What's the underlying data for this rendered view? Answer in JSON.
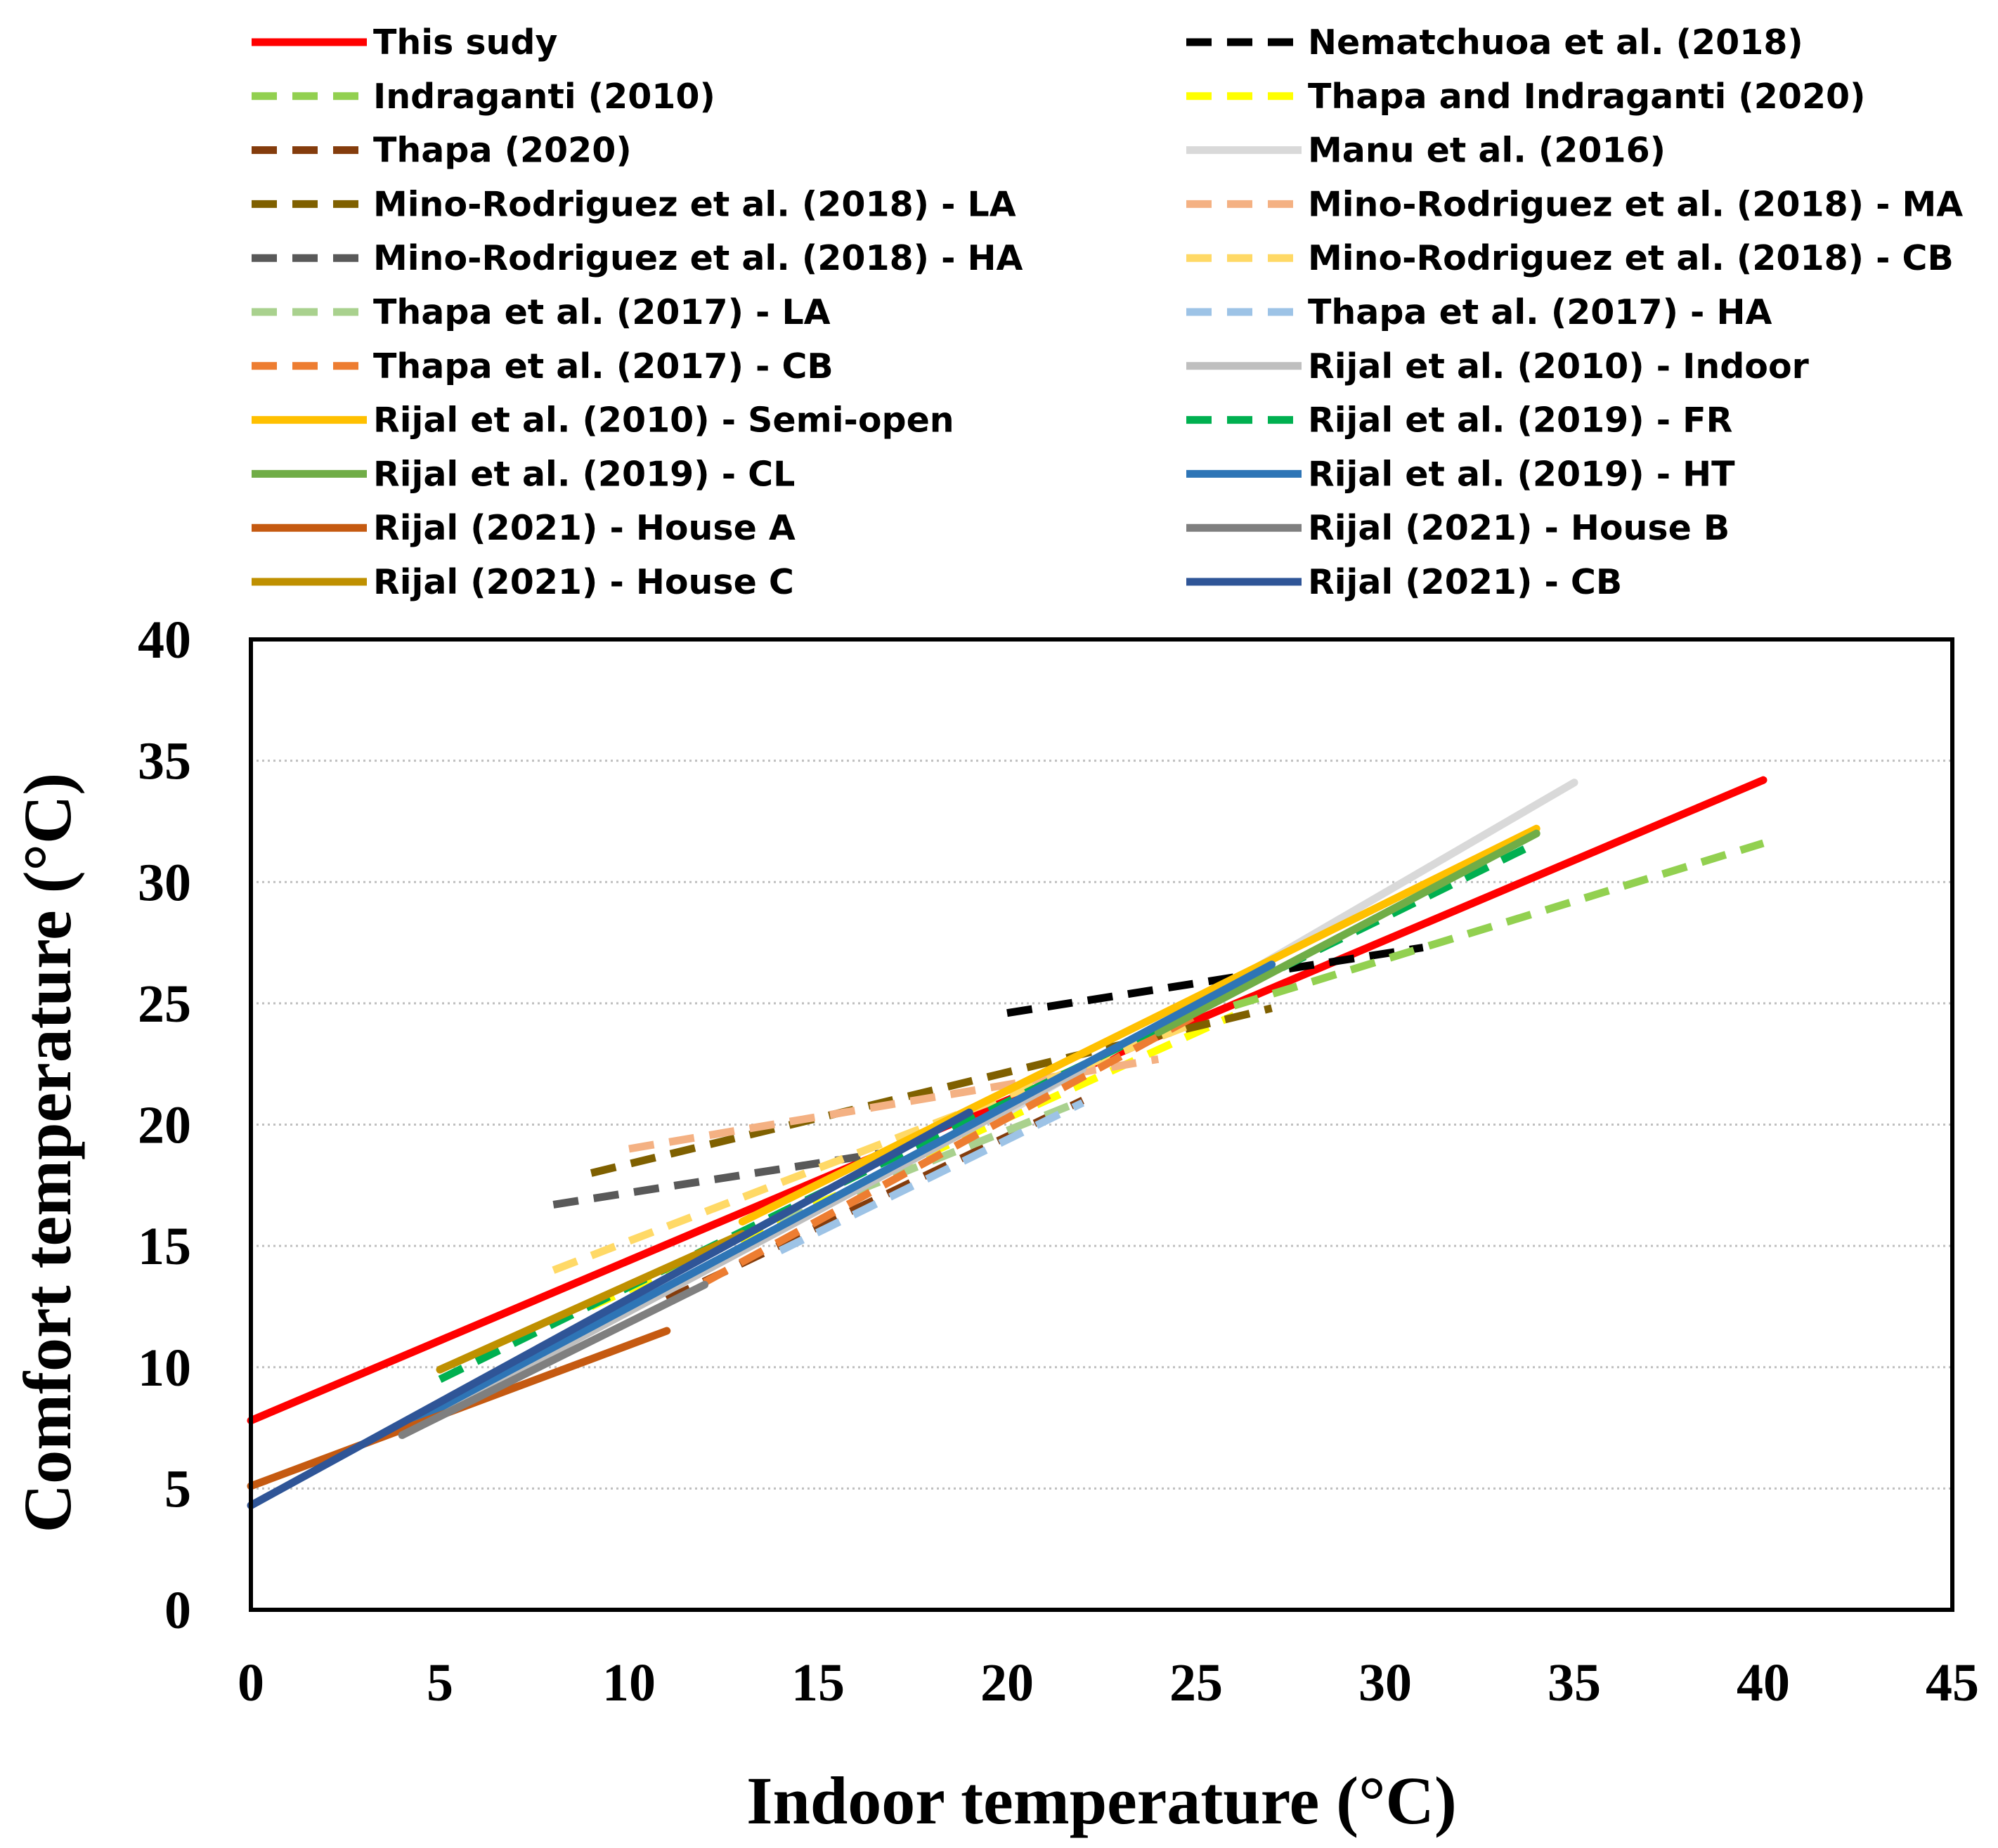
{
  "chart_data": {
    "type": "line",
    "title": "",
    "xlabel": "Indoor temperature (°C)",
    "ylabel": "Comfort temperature (°C)",
    "xlim": [
      0,
      45
    ],
    "ylim": [
      0,
      40
    ],
    "xticks": [
      "0",
      "5",
      "10",
      "15",
      "20",
      "25",
      "30",
      "35",
      "40",
      "45"
    ],
    "yticks": [
      "0",
      "5",
      "10",
      "15",
      "20",
      "25",
      "30",
      "35",
      "40"
    ],
    "grid": "horizontal dotted",
    "legend_position": "top",
    "series": [
      {
        "name": "This sudy",
        "color": "#ff0000",
        "style": "solid",
        "x": [
          0,
          40
        ],
        "y": [
          7.8,
          34.2
        ]
      },
      {
        "name": "Nematchuoa et al. (2018)",
        "color": "#000000",
        "style": "dashed",
        "x": [
          20,
          31
        ],
        "y": [
          24.6,
          27.3
        ]
      },
      {
        "name": "Indraganti (2010)",
        "color": "#92d050",
        "style": "dashed",
        "x": [
          26,
          40
        ],
        "y": [
          24.9,
          31.6
        ]
      },
      {
        "name": "Thapa and Indraganti (2020)",
        "color": "#ffff00",
        "style": "dashed",
        "x": [
          9,
          26
        ],
        "y": [
          12.5,
          24.5
        ]
      },
      {
        "name": "Thapa (2020)",
        "color": "#843c0c",
        "style": "dashed",
        "x": [
          11,
          22
        ],
        "y": [
          12.8,
          21
        ]
      },
      {
        "name": "Manu et al. (2016)",
        "color": "#d9d9d9",
        "style": "solid",
        "x": [
          20,
          35
        ],
        "y": [
          20.5,
          34.1
        ]
      },
      {
        "name": "Mino-Rodriguez et al. (2018) - LA",
        "color": "#7f6000",
        "style": "dashed",
        "x": [
          9,
          27
        ],
        "y": [
          18,
          24.8
        ]
      },
      {
        "name": "Mino-Rodriguez et al. (2018) - MA",
        "color": "#f4b183",
        "style": "dashed",
        "x": [
          10,
          24
        ],
        "y": [
          19,
          22.7
        ]
      },
      {
        "name": "Mino-Rodriguez et al. (2018) - HA",
        "color": "#595959",
        "style": "dashed",
        "x": [
          8,
          17
        ],
        "y": [
          16.7,
          18.9
        ]
      },
      {
        "name": "Mino-Rodriguez et al. (2018) - CB",
        "color": "#ffd966",
        "style": "dashed",
        "x": [
          8,
          25
        ],
        "y": [
          14,
          24.2
        ]
      },
      {
        "name": "Thapa et al. (2017) - LA",
        "color": "#a9d18e",
        "style": "dashed",
        "x": [
          14,
          22
        ],
        "y": [
          16,
          21
        ]
      },
      {
        "name": "Thapa et al. (2017) - HA",
        "color": "#9dc3e6",
        "style": "dashed",
        "x": [
          14,
          22
        ],
        "y": [
          14.8,
          20.9
        ]
      },
      {
        "name": "Thapa et al. (2017) - CB",
        "color": "#ed7d31",
        "style": "dashed",
        "x": [
          12,
          25
        ],
        "y": [
          13.5,
          24.5
        ]
      },
      {
        "name": "Rijal et al. (2010) - Indoor",
        "color": "#bfbfbf",
        "style": "solid",
        "x": [
          4,
          22
        ],
        "y": [
          7.3,
          22.3
        ]
      },
      {
        "name": "Rijal et al. (2010) - Semi-open",
        "color": "#ffc000",
        "style": "solid",
        "x": [
          13,
          34
        ],
        "y": [
          16,
          32.2
        ]
      },
      {
        "name": "Rijal et al. (2019) - FR",
        "color": "#00b050",
        "style": "dashed",
        "x": [
          5,
          34
        ],
        "y": [
          9.5,
          31.6
        ]
      },
      {
        "name": "Rijal et al. (2019) - CL",
        "color": "#70ad47",
        "style": "solid",
        "x": [
          24,
          34
        ],
        "y": [
          23.8,
          32
        ]
      },
      {
        "name": "Rijal et al. (2019) - HT",
        "color": "#2e75b6",
        "style": "solid",
        "x": [
          4,
          27
        ],
        "y": [
          7.5,
          26.6
        ]
      },
      {
        "name": "Rijal (2021) - House A",
        "color": "#c55a11",
        "style": "solid",
        "x": [
          0,
          11
        ],
        "y": [
          5.1,
          11.5
        ]
      },
      {
        "name": "Rijal (2021) - House B",
        "color": "#7f7f7f",
        "style": "solid",
        "x": [
          4,
          12
        ],
        "y": [
          7.2,
          13.4
        ]
      },
      {
        "name": "Rijal (2021) - House C",
        "color": "#bf9000",
        "style": "solid",
        "x": [
          5,
          13
        ],
        "y": [
          9.9,
          15.5
        ]
      },
      {
        "name": "Rijal (2021) - CB",
        "color": "#2f5597",
        "style": "solid",
        "x": [
          0,
          19
        ],
        "y": [
          4.3,
          20.5
        ]
      }
    ]
  }
}
